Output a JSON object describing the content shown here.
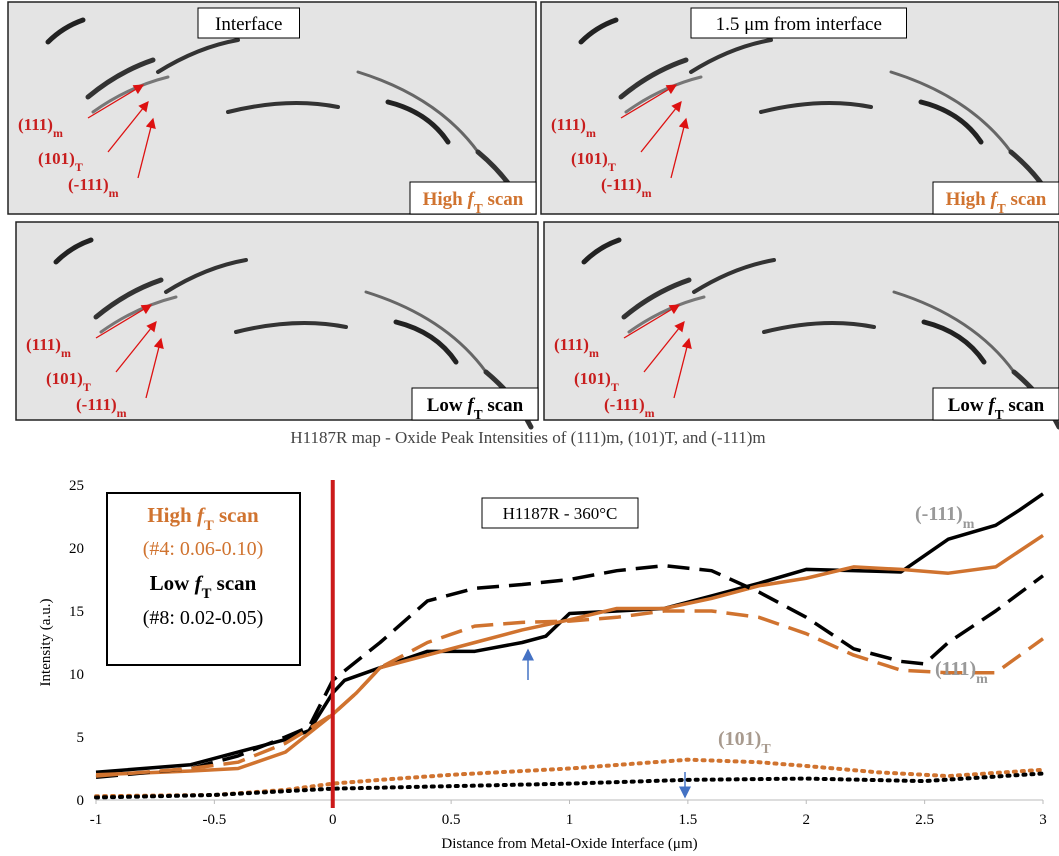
{
  "panels": [
    {
      "title": "Interface",
      "scan": {
        "text": "High",
        "var": "f",
        "sub": "T",
        "post": "scan"
      },
      "labels": [
        {
          "text": "(111)",
          "sub": "m"
        },
        {
          "text": "(101)",
          "sub": "T"
        },
        {
          "text": "(-111)",
          "sub": "m"
        }
      ]
    },
    {
      "title": "1.5 μm from interface",
      "scan": {
        "text": "High",
        "var": "f",
        "sub": "T",
        "post": "scan"
      },
      "labels": [
        {
          "text": "(111)",
          "sub": "m"
        },
        {
          "text": "(101)",
          "sub": "T"
        },
        {
          "text": "(-111)",
          "sub": "m"
        }
      ]
    },
    {
      "scan": {
        "text": "Low",
        "var": "f",
        "sub": "T",
        "post": "scan"
      },
      "labels": [
        {
          "text": "(111)",
          "sub": "m"
        },
        {
          "text": "(101)",
          "sub": "T"
        },
        {
          "text": "(-111)",
          "sub": "m"
        }
      ]
    },
    {
      "scan": {
        "text": "Low",
        "var": "f",
        "sub": "T",
        "post": "scan"
      },
      "labels": [
        {
          "text": "(111)",
          "sub": "m"
        },
        {
          "text": "(101)",
          "sub": "T"
        },
        {
          "text": "(-111)",
          "sub": "m"
        }
      ]
    }
  ],
  "chart_data": {
    "type": "line",
    "title": "H1187R map - Oxide Peak Intensities of (111)m, (101)T, and (-111)m",
    "x_label": "Distance from Metal-Oxide Interface (μm)",
    "y_label": "Intensity (a.u.)",
    "xlim": [
      -1,
      3
    ],
    "xticks": [
      -1,
      -0.5,
      0,
      0.5,
      1,
      1.5,
      2,
      2.5,
      3
    ],
    "ylim": [
      0,
      25
    ],
    "yticks": [
      0,
      5,
      10,
      15,
      20,
      25
    ],
    "vline": 0,
    "vline_color": "#cc1a1a",
    "box_label": "H1187R - 360°C",
    "legend_box": [
      {
        "text": "High",
        "var": "f",
        "sub": "T",
        "post": "scan",
        "color": "#d0732f"
      },
      {
        "line": "(#4: 0.06-0.10)",
        "color": "#d0732f"
      },
      {
        "text": "Low",
        "var": "f",
        "sub": "T",
        "post": "scan",
        "color": "#000000"
      },
      {
        "line": "(#8: 0.02-0.05)",
        "color": "#000000"
      }
    ],
    "annotations": [
      {
        "text": "(-111)",
        "sub": "m"
      },
      {
        "text": "(111)",
        "sub": "m"
      },
      {
        "text": "(101)",
        "sub": "T"
      }
    ],
    "series": [
      {
        "color": "#000000",
        "dash": "solid",
        "x": [
          -1,
          -0.6,
          -0.4,
          -0.2,
          -0.1,
          0,
          0.05,
          0.2,
          0.4,
          0.6,
          0.8,
          0.9,
          1.0,
          1.2,
          1.4,
          1.6,
          1.8,
          2.0,
          2.2,
          2.4,
          2.6,
          2.8,
          2.9,
          3.0
        ],
        "values": [
          2.2,
          2.8,
          3.8,
          4.8,
          5.5,
          8.5,
          9.5,
          10.5,
          11.8,
          11.8,
          12.5,
          13,
          14.8,
          15.0,
          15.2,
          16.2,
          17.2,
          18.3,
          18.2,
          18.1,
          20.7,
          21.8,
          23,
          24.3
        ]
      },
      {
        "color": "#d0732f",
        "dash": "solid",
        "x": [
          -1,
          -0.6,
          -0.4,
          -0.2,
          0,
          0.1,
          0.2,
          0.4,
          0.6,
          0.8,
          1.0,
          1.2,
          1.4,
          1.6,
          1.8,
          2.0,
          2.2,
          2.4,
          2.6,
          2.8,
          3.0
        ],
        "values": [
          2.0,
          2.3,
          2.5,
          3.8,
          6.8,
          8.5,
          10.5,
          11.5,
          12.5,
          13.5,
          14.3,
          15.2,
          15.2,
          16.0,
          17.0,
          17.6,
          18.5,
          18.3,
          18.0,
          18.5,
          21.0
        ]
      },
      {
        "color": "#000000",
        "dash": "dashed",
        "x": [
          -1,
          -0.6,
          -0.4,
          -0.2,
          -0.1,
          0,
          0.2,
          0.4,
          0.6,
          0.8,
          1.0,
          1.2,
          1.4,
          1.6,
          1.8,
          2.0,
          2.2,
          2.4,
          2.5,
          2.6,
          2.8,
          3.0
        ],
        "values": [
          1.8,
          2.5,
          3.5,
          5.0,
          5.8,
          9.5,
          12.5,
          15.8,
          16.8,
          17.1,
          17.5,
          18.2,
          18.6,
          18.2,
          16.5,
          14.5,
          12.0,
          11.0,
          10.8,
          12.5,
          15.0,
          17.8
        ]
      },
      {
        "color": "#d0732f",
        "dash": "dashed",
        "x": [
          -1,
          -0.6,
          -0.4,
          -0.2,
          0,
          0.1,
          0.2,
          0.4,
          0.6,
          0.8,
          1.0,
          1.2,
          1.4,
          1.6,
          1.8,
          2.0,
          2.2,
          2.4,
          2.6,
          2.8,
          3.0
        ],
        "values": [
          1.9,
          2.5,
          3.0,
          4.5,
          6.8,
          8.5,
          10.5,
          12.5,
          13.8,
          14.1,
          14.2,
          14.5,
          15.0,
          15.0,
          14.5,
          13.2,
          11.5,
          10.3,
          10.1,
          10.1,
          12.8
        ]
      },
      {
        "color": "#d0732f",
        "dash": "dotted",
        "x": [
          -1,
          -0.5,
          -0.2,
          0,
          0.2,
          0.5,
          1.0,
          1.5,
          1.8,
          2.0,
          2.3,
          2.6,
          3.0
        ],
        "values": [
          0.3,
          0.4,
          0.8,
          1.3,
          1.6,
          2.0,
          2.5,
          3.2,
          3.0,
          2.7,
          2.2,
          1.9,
          2.4
        ]
      },
      {
        "color": "#000000",
        "dash": "dotted",
        "x": [
          -1,
          -0.5,
          0,
          0.5,
          1.0,
          1.5,
          2.0,
          2.5,
          3.0
        ],
        "values": [
          0.2,
          0.4,
          0.9,
          1.1,
          1.3,
          1.6,
          1.7,
          1.5,
          2.1
        ]
      }
    ]
  }
}
